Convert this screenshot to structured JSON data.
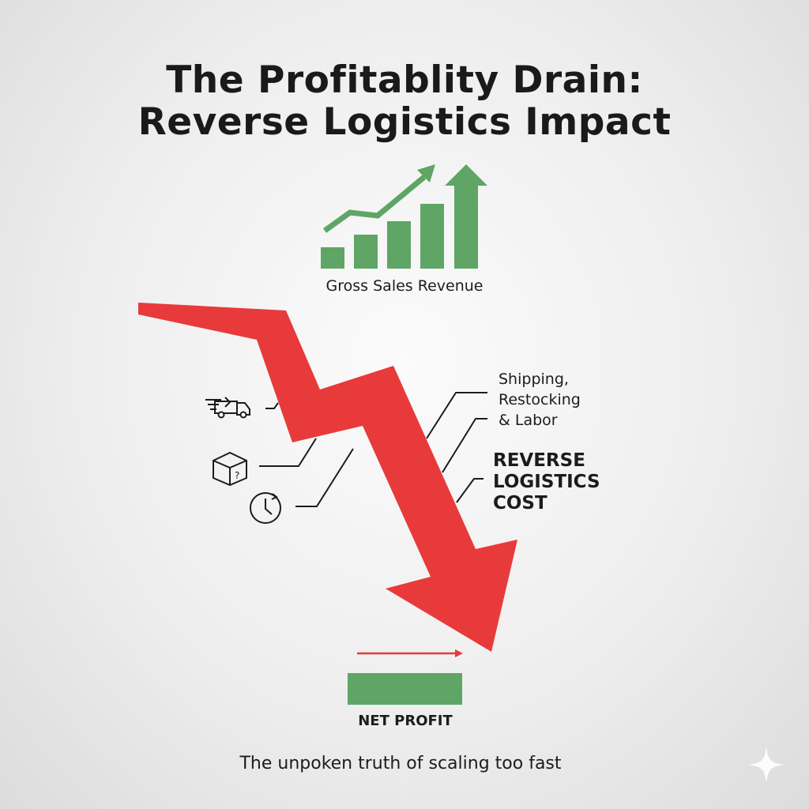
{
  "title": {
    "line1": "The Profitablity Drain:",
    "line2": "Reverse Logistics Impact"
  },
  "revenue": {
    "label": "Gross Sales Revenue",
    "icon": "growth-bar-chart-icon"
  },
  "cost": {
    "detail": [
      "Shipping,",
      "Restocking",
      "& Labor"
    ],
    "label": [
      "REVERSE",
      "LOGISTICS",
      "COST"
    ]
  },
  "icons": [
    "delivery-truck-icon",
    "unknown-package-icon",
    "clock-icon"
  ],
  "net_profit": {
    "label": "NET PROFIT"
  },
  "tagline": "The unpoken truth of scaling too fast",
  "colors": {
    "green": "#5fa565",
    "red": "#e83a3a",
    "text": "#1c1c1c"
  }
}
